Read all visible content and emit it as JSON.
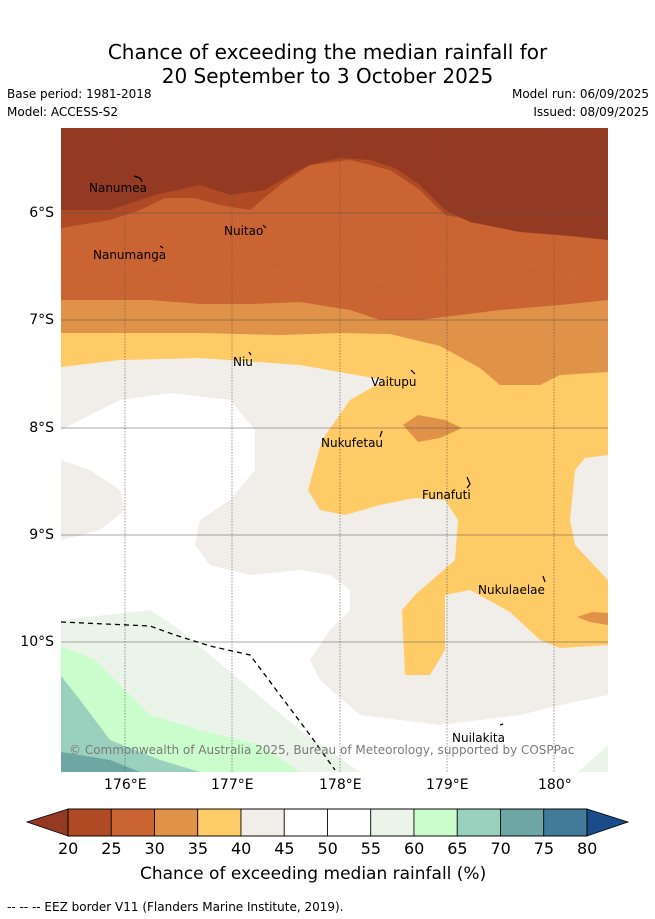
{
  "header": {
    "title_line1": "Chance of exceeding the median rainfall for",
    "title_line2": "20 September to 3 October 2025",
    "base_period": "Base period: 1981-2018",
    "model": "Model: ACCESS-S2",
    "model_run": "Model run: 06/09/2025",
    "issued": "Issued: 08/09/2025"
  },
  "map": {
    "lat_ticks": [
      "6°S",
      "7°S",
      "8°S",
      "9°S",
      "10°S"
    ],
    "lon_ticks": [
      "176°E",
      "177°E",
      "178°E",
      "179°E",
      "180°"
    ],
    "places": [
      "Nanumea",
      "Nuitao",
      "Nanumanga",
      "Niu",
      "Vaitupu",
      "Nukufetau",
      "Funafuti",
      "Nukulaelae",
      "Nuilakita"
    ],
    "credit": "© Commonwealth of Australia 2025, Bureau of Meteorology, supported by COSPPac"
  },
  "colorbar": {
    "ticks": [
      "20",
      "25",
      "30",
      "35",
      "40",
      "45",
      "50",
      "55",
      "60",
      "65",
      "70",
      "75",
      "80"
    ],
    "colors": [
      "#b04a24",
      "#ca6432",
      "#df9248",
      "#fecb67",
      "#f1ede8",
      "#ffffff",
      "#ffffff",
      "#eaf4e8",
      "#cbfccb",
      "#9ad0be",
      "#6ea6a4",
      "#427b9a"
    ],
    "under_color": "#953a22",
    "over_color": "#1b4c8a",
    "label": "Chance of exceeding median rainfall (%)"
  },
  "footer": {
    "eez": "--  --  -- EEZ border V11 (Flanders Marine Institute, 2019)."
  }
}
